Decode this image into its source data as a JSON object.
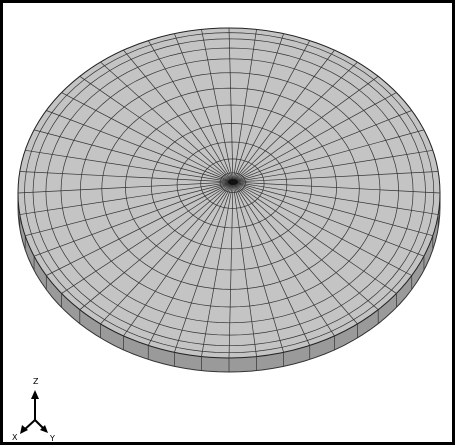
{
  "viewport": {
    "triad": {
      "z_label": "Z",
      "x_label": "X",
      "y_label": "Y"
    }
  }
}
